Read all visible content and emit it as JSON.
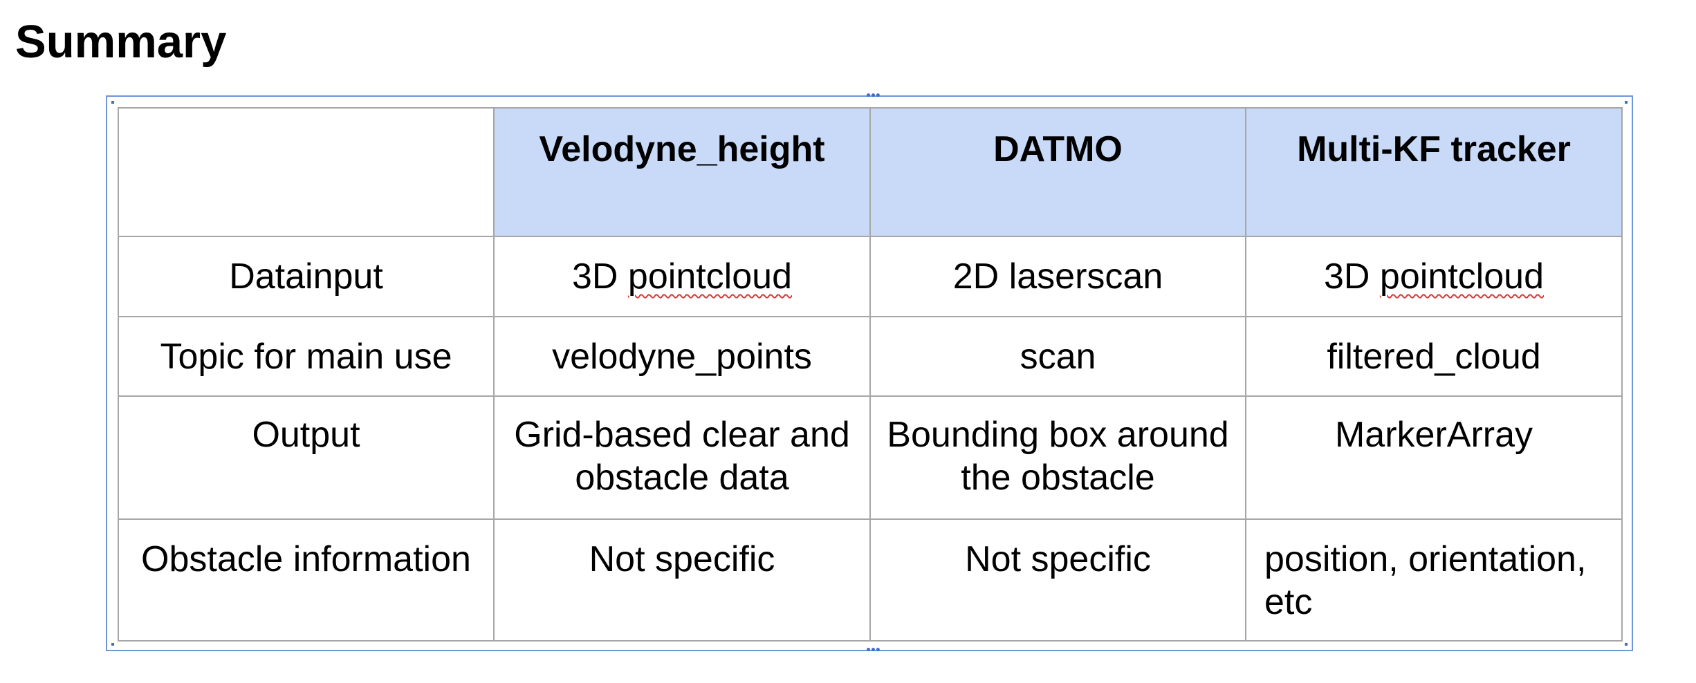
{
  "title": "Summary",
  "table": {
    "headers": [
      "",
      "Velodyne_height",
      "DATMO",
      "Multi-KF tracker"
    ],
    "rows": [
      {
        "label": "Datainput",
        "cells": [
          "3D pointcloud",
          "2D laserscan",
          "3D pointcloud"
        ]
      },
      {
        "label": "Topic for main use",
        "cells": [
          "velodyne_points",
          "scan",
          "filtered_cloud"
        ]
      },
      {
        "label": "Output",
        "cells": [
          "Grid-based clear and obstacle data",
          "Bounding box around the obstacle",
          "MarkerArray"
        ]
      },
      {
        "label": "Obstacle information",
        "cells": [
          "Not specific",
          "Not specific",
          "position, orientation, etc"
        ]
      }
    ]
  },
  "squiggle_words": {
    "r1c1": [
      "3D ",
      "pointcloud"
    ],
    "r1c3": [
      "3D ",
      "pointcloud"
    ]
  },
  "colors": {
    "header_fill": "#c9daf8",
    "frame_border": "#6f95d6",
    "grid_lines": "#a6a6a6"
  }
}
